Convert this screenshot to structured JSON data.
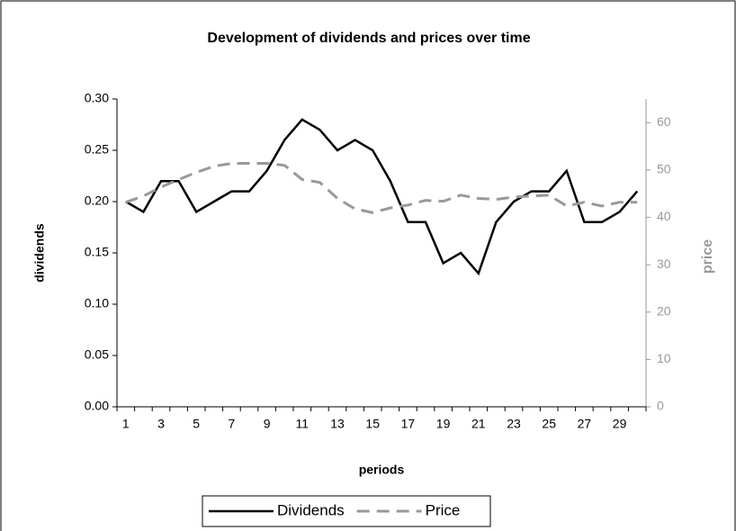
{
  "chart_data": {
    "type": "line",
    "title": "Development of dividends and prices over time",
    "x_label": "periods",
    "y_label": "dividends",
    "y2_label": "price",
    "categories": [
      1,
      null,
      3,
      null,
      5,
      null,
      7,
      null,
      9,
      null,
      11,
      null,
      13,
      null,
      15,
      null,
      17,
      null,
      19,
      null,
      21,
      null,
      23,
      null,
      25,
      null,
      27,
      null,
      29,
      null
    ],
    "series": [
      {
        "name": "Dividends",
        "color": "#000000",
        "dash": false,
        "axis": "y",
        "values": [
          0.2,
          0.19,
          0.22,
          0.22,
          0.19,
          0.2,
          0.21,
          0.21,
          0.23,
          0.26,
          0.28,
          0.27,
          0.25,
          0.26,
          0.25,
          0.22,
          0.18,
          0.18,
          0.14,
          0.15,
          0.13,
          0.18,
          0.2,
          0.21,
          0.21,
          0.23,
          0.18,
          0.18,
          0.19,
          0.21
        ]
      },
      {
        "name": "Price",
        "color": "#999999",
        "dash": true,
        "axis": "y2",
        "values": [
          43.2,
          44.5,
          46.4,
          48,
          49.5,
          50.8,
          51.4,
          51.4,
          51.4,
          51,
          48,
          47.4,
          44,
          41.8,
          41,
          42,
          42.6,
          43.6,
          43.4,
          44.7,
          44,
          43.8,
          44.3,
          44.5,
          44.7,
          42.4,
          43.2,
          42.4,
          43.2,
          43.2
        ]
      }
    ],
    "ylim": [
      0,
      0.3
    ],
    "yticks": [
      {
        "value": 0,
        "label": "0.00"
      },
      0.05,
      {
        "value": 0.1,
        "label": "0.10"
      },
      0.15,
      {
        "value": 0.2,
        "label": "0.20"
      },
      0.25,
      {
        "value": 0.3,
        "label": "0.30"
      }
    ],
    "y2lim": [
      0,
      65
    ],
    "y2ticks": [
      0,
      10,
      20,
      30,
      40,
      50,
      60
    ],
    "y2_color": "#999999",
    "legend": "bottom"
  }
}
